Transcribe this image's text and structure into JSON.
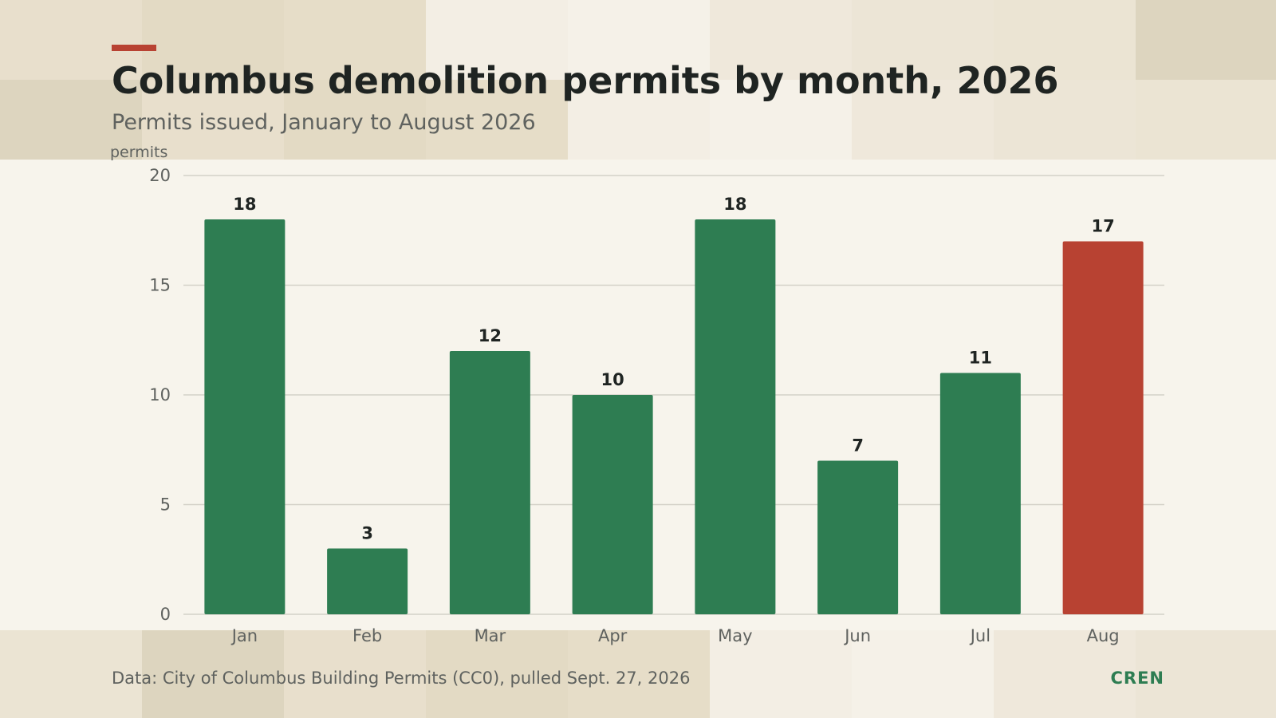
{
  "header": {
    "title": "Columbus demolition permits by month, 2026",
    "subtitle": "Permits issued, January to August 2026",
    "unit_label": "permits"
  },
  "footer": {
    "source": "Data: City of Columbus Building Permits (CC0), pulled Sept. 27, 2026",
    "brand": "CREN"
  },
  "colors": {
    "accent": "#b84232",
    "bar": "#2e7d52",
    "highlight": "#b84232",
    "background": "#f7f4ec",
    "gridline": "#d4d1c8",
    "brand": "#2e7d52"
  },
  "chart_data": {
    "type": "bar",
    "title": "Columbus demolition permits by month, 2026",
    "subtitle": "Permits issued, January to August 2026",
    "xlabel": "",
    "ylabel": "permits",
    "categories": [
      "Jan",
      "Feb",
      "Mar",
      "Apr",
      "May",
      "Jun",
      "Jul",
      "Aug"
    ],
    "values": [
      18,
      3,
      12,
      10,
      18,
      7,
      11,
      17
    ],
    "highlighted_category": "Aug",
    "ylim": [
      0,
      20
    ],
    "yticks": [
      0,
      5,
      10,
      15,
      20
    ],
    "grid": true,
    "data_labels": true
  }
}
